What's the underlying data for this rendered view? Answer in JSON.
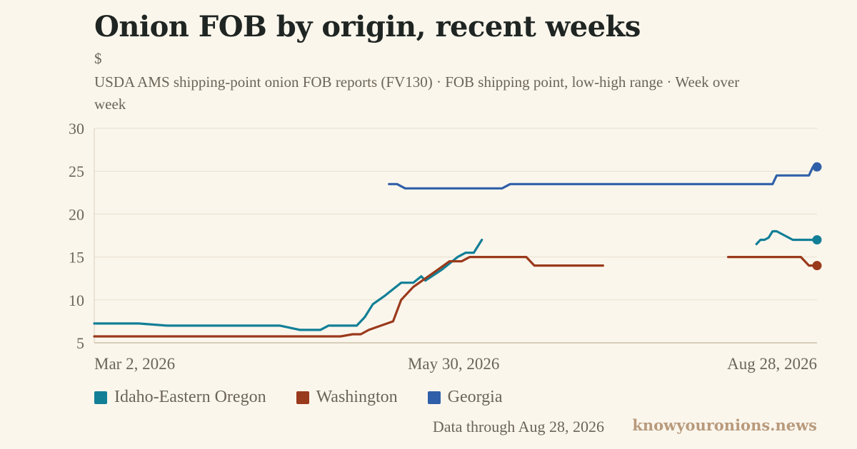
{
  "header": {
    "title": "Onion FOB by origin, recent weeks",
    "unit": "$",
    "subtitle": "USDA AMS shipping-point onion FOB reports (FV130) · FOB shipping point, low-high range · Week over week"
  },
  "footer": {
    "note": "Data through Aug 28, 2026",
    "brand": "knowyouronions.news"
  },
  "chart_data": {
    "type": "line",
    "ylim": [
      5,
      30
    ],
    "yticks": [
      5,
      10,
      15,
      20,
      25,
      30
    ],
    "xlim": [
      "2026-03-02",
      "2026-08-28"
    ],
    "xticks": [
      {
        "date": "2026-03-02",
        "label": "Mar 2, 2026"
      },
      {
        "date": "2026-05-30",
        "label": "May 30, 2026"
      },
      {
        "date": "2026-08-28",
        "label": "Aug 28, 2026"
      }
    ],
    "grid": true,
    "legend_position": "bottom-left",
    "series": [
      {
        "name": "Idaho-Eastern Oregon",
        "color": "#127f97",
        "end_marker": true,
        "segments": [
          [
            [
              "2026-03-02",
              7.25
            ],
            [
              "2026-03-06",
              7.25
            ],
            [
              "2026-03-13",
              7.25
            ],
            [
              "2026-03-20",
              7.0
            ],
            [
              "2026-03-27",
              7.0
            ],
            [
              "2026-04-03",
              7.0
            ],
            [
              "2026-04-10",
              7.0
            ],
            [
              "2026-04-17",
              7.0
            ],
            [
              "2026-04-22",
              6.5
            ],
            [
              "2026-04-27",
              6.5
            ],
            [
              "2026-04-29",
              7.0
            ],
            [
              "2026-05-01",
              7.0
            ],
            [
              "2026-05-06",
              7.0
            ],
            [
              "2026-05-08",
              8.0
            ],
            [
              "2026-05-10",
              9.5
            ],
            [
              "2026-05-13",
              10.5
            ],
            [
              "2026-05-17",
              12.0
            ],
            [
              "2026-05-20",
              12.0
            ],
            [
              "2026-05-22",
              12.75
            ],
            [
              "2026-05-23",
              12.25
            ],
            [
              "2026-05-27",
              13.5
            ],
            [
              "2026-05-31",
              15.0
            ],
            [
              "2026-06-02",
              15.5
            ],
            [
              "2026-06-04",
              15.5
            ],
            [
              "2026-06-06",
              17.0
            ]
          ],
          [
            [
              "2026-08-13",
              16.5
            ],
            [
              "2026-08-14",
              17.0
            ],
            [
              "2026-08-15",
              17.0
            ],
            [
              "2026-08-16",
              17.25
            ],
            [
              "2026-08-17",
              18.0
            ],
            [
              "2026-08-18",
              18.0
            ],
            [
              "2026-08-20",
              17.5
            ],
            [
              "2026-08-22",
              17.0
            ],
            [
              "2026-08-28",
              17.0
            ]
          ]
        ]
      },
      {
        "name": "Washington",
        "color": "#9a3a1c",
        "end_marker": true,
        "segments": [
          [
            [
              "2026-03-02",
              5.75
            ],
            [
              "2026-03-15",
              5.75
            ],
            [
              "2026-04-01",
              5.75
            ],
            [
              "2026-04-15",
              5.75
            ],
            [
              "2026-05-02",
              5.75
            ],
            [
              "2026-05-05",
              6.0
            ],
            [
              "2026-05-07",
              6.0
            ],
            [
              "2026-05-09",
              6.5
            ],
            [
              "2026-05-12",
              7.0
            ],
            [
              "2026-05-15",
              7.5
            ],
            [
              "2026-05-17",
              10.0
            ],
            [
              "2026-05-20",
              11.5
            ],
            [
              "2026-05-23",
              12.5
            ],
            [
              "2026-05-26",
              13.5
            ],
            [
              "2026-05-29",
              14.5
            ],
            [
              "2026-06-01",
              14.5
            ],
            [
              "2026-06-03",
              15.0
            ],
            [
              "2026-06-05",
              15.0
            ],
            [
              "2026-06-10",
              15.0
            ],
            [
              "2026-06-15",
              15.0
            ],
            [
              "2026-06-17",
              15.0
            ],
            [
              "2026-06-19",
              14.0
            ],
            [
              "2026-06-25",
              14.0
            ],
            [
              "2026-07-01",
              14.0
            ],
            [
              "2026-07-06",
              14.0
            ]
          ],
          [
            [
              "2026-08-06",
              15.0
            ],
            [
              "2026-08-15",
              15.0
            ],
            [
              "2026-08-24",
              15.0
            ],
            [
              "2026-08-26",
              14.0
            ],
            [
              "2026-08-28",
              14.0
            ]
          ]
        ]
      },
      {
        "name": "Georgia",
        "color": "#2f5fa8",
        "end_marker": true,
        "segments": [
          [
            [
              "2026-05-14",
              23.5
            ],
            [
              "2026-05-16",
              23.5
            ],
            [
              "2026-05-18",
              23.0
            ],
            [
              "2026-05-25",
              23.0
            ],
            [
              "2026-06-01",
              23.0
            ],
            [
              "2026-06-08",
              23.0
            ],
            [
              "2026-06-11",
              23.0
            ],
            [
              "2026-06-13",
              23.5
            ],
            [
              "2026-06-20",
              23.5
            ],
            [
              "2026-07-01",
              23.5
            ],
            [
              "2026-07-15",
              23.5
            ],
            [
              "2026-08-01",
              23.5
            ],
            [
              "2026-08-17",
              23.5
            ],
            [
              "2026-08-18",
              24.5
            ],
            [
              "2026-08-20",
              24.5
            ],
            [
              "2026-08-26",
              24.5
            ],
            [
              "2026-08-27",
              25.5
            ],
            [
              "2026-08-28",
              25.5
            ]
          ]
        ]
      }
    ]
  }
}
